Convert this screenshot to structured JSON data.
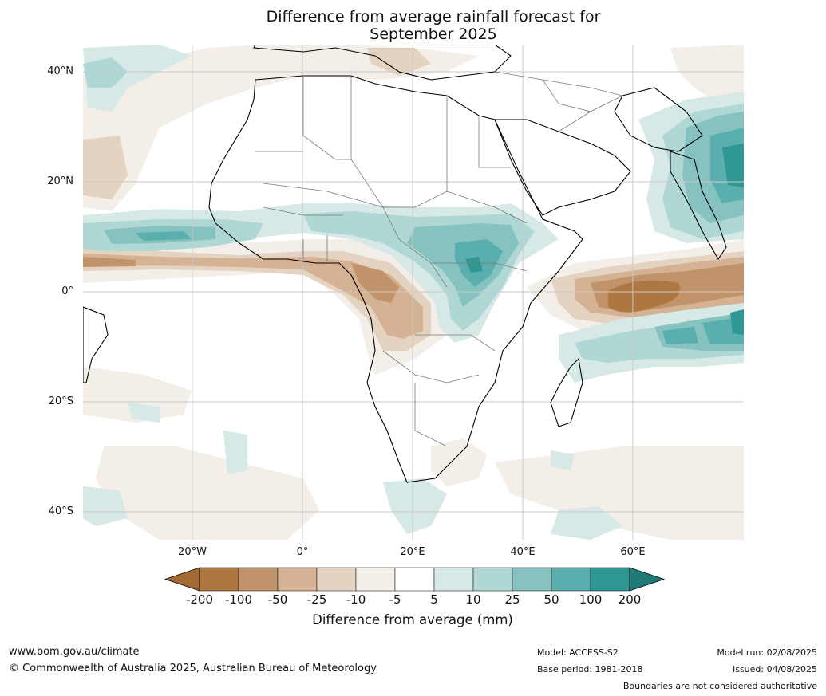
{
  "title_line1": "Difference from average rainfall forecast for",
  "title_line2": "September 2025",
  "axes": {
    "lat_labels": [
      "40°N",
      "20°N",
      "0°",
      "20°S",
      "40°S"
    ],
    "lon_labels": [
      "20°W",
      "0°",
      "20°E",
      "40°E",
      "60°E"
    ]
  },
  "colorbar": {
    "title": "Difference from average (mm)",
    "tick_labels": [
      "-200",
      "-100",
      "-50",
      "-25",
      "-10",
      "-5",
      "5",
      "10",
      "25",
      "50",
      "100",
      "200"
    ],
    "colors": [
      "#a46a33",
      "#ae7740",
      "#c1936b",
      "#d4b293",
      "#e5d3c2",
      "#f3eee8",
      "#ffffff",
      "#d6e9e7",
      "#afd8d5",
      "#86c2c0",
      "#5aaead",
      "#2e9794",
      "#1f7a78"
    ]
  },
  "palette": {
    "land": "#ffffff",
    "ocean": "#ffffff",
    "grid": "#bdbdbd",
    "coast": "#000000",
    "border": "#7a7a7a"
  },
  "footer": {
    "url": "www.bom.gov.au/climate",
    "copyright": "© Commonwealth of Australia 2025, Australian Bureau of Meteorology",
    "model": "Model: ACCESS-S2",
    "base_period": "Base period: 1981-2018",
    "model_run": "Model run: 02/08/2025",
    "issued": "Issued: 04/08/2025",
    "disclaimer": "Boundaries are not considered authoritative"
  }
}
